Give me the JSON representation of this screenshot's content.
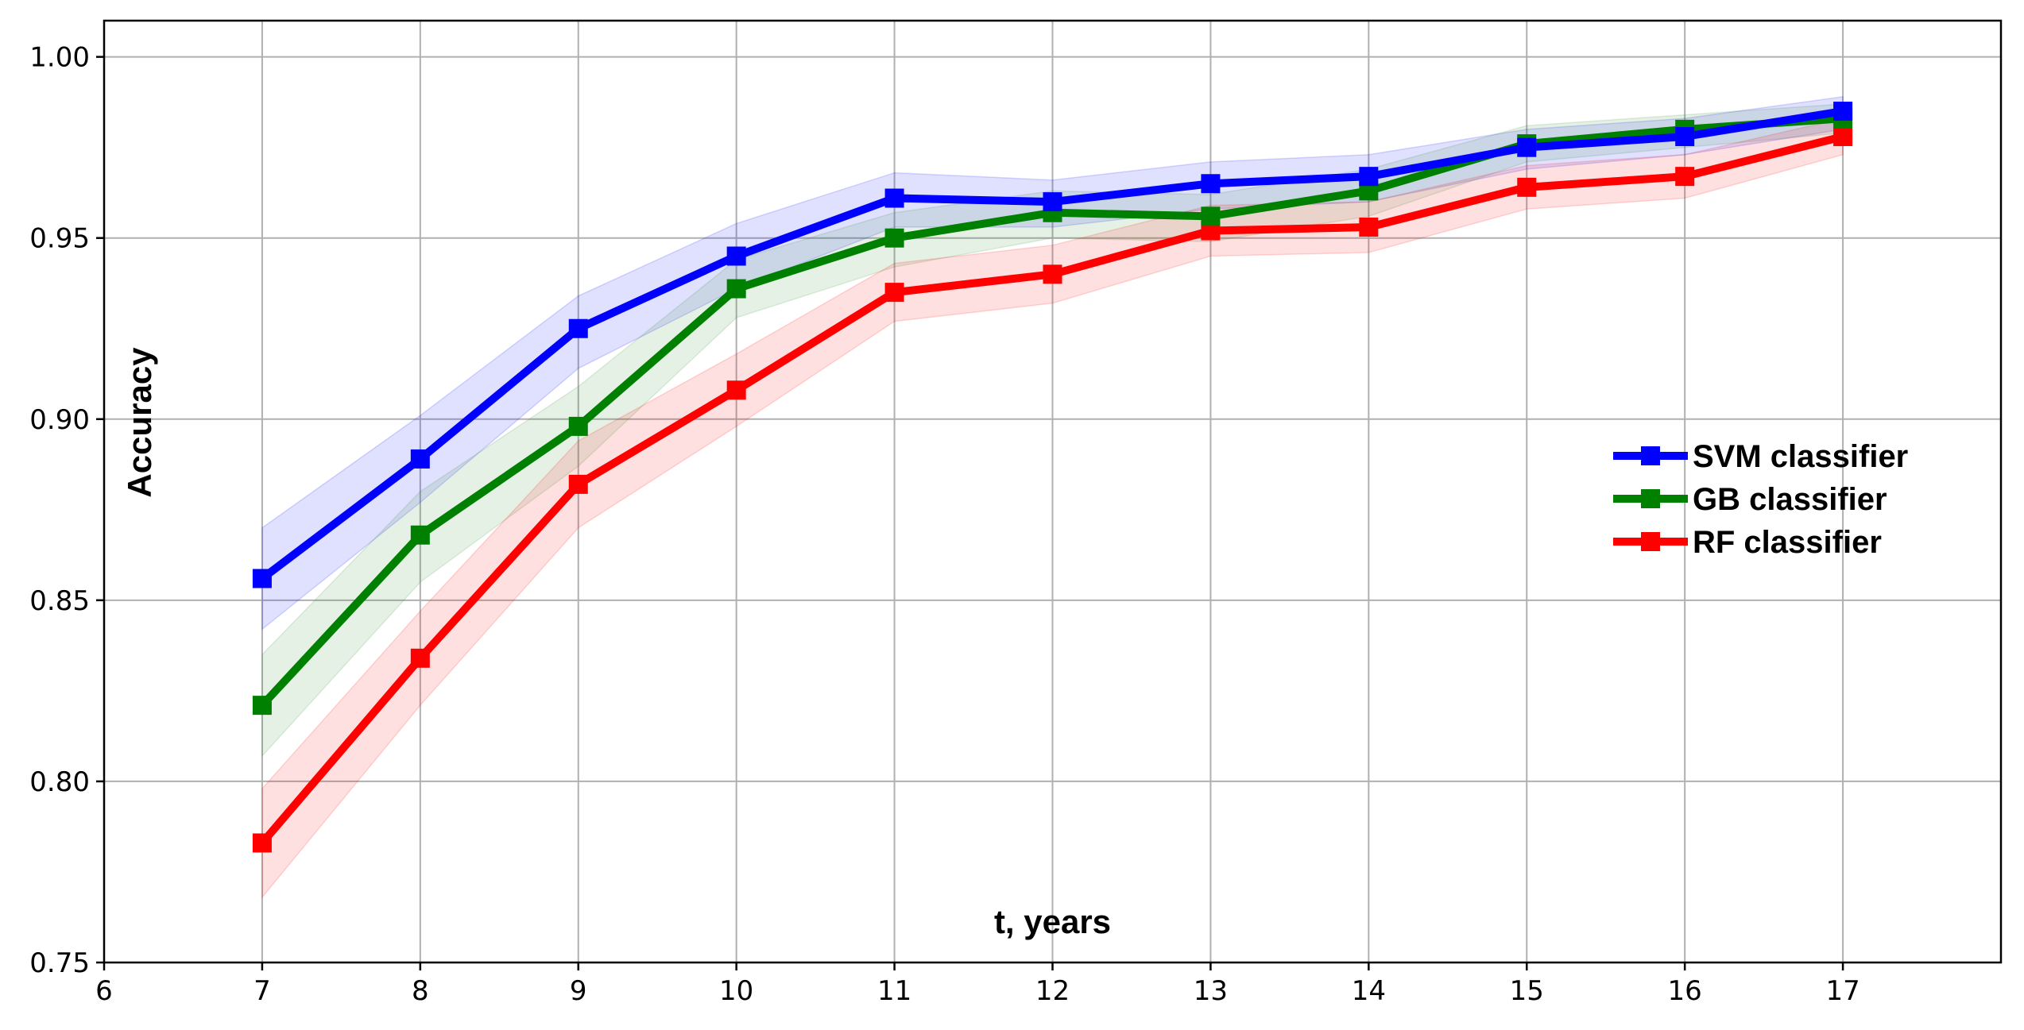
{
  "chart_data": {
    "type": "line",
    "title": "",
    "xlabel": "t, years",
    "ylabel": "Accuracy",
    "xlim": [
      6,
      18
    ],
    "ylim": [
      0.75,
      1.01
    ],
    "x_ticks": [
      6,
      7,
      8,
      9,
      10,
      11,
      12,
      13,
      14,
      15,
      16,
      17
    ],
    "y_ticks": [
      0.75,
      0.8,
      0.85,
      0.9,
      0.95,
      1.0
    ],
    "y_tick_labels": [
      "0.75",
      "0.80",
      "0.85",
      "0.90",
      "0.95",
      "1.00"
    ],
    "grid": true,
    "legend_position": "center-right",
    "x": [
      7,
      8,
      9,
      10,
      11,
      12,
      13,
      14,
      15,
      16,
      17
    ],
    "series": [
      {
        "name": "SVM classifier",
        "color": "#0000ff",
        "band_color": "#0000ff",
        "values": [
          0.856,
          0.889,
          0.925,
          0.945,
          0.961,
          0.96,
          0.965,
          0.967,
          0.975,
          0.978,
          0.985
        ],
        "lower": [
          0.842,
          0.877,
          0.914,
          0.936,
          0.953,
          0.953,
          0.958,
          0.96,
          0.969,
          0.973,
          0.98
        ],
        "upper": [
          0.87,
          0.901,
          0.934,
          0.954,
          0.968,
          0.966,
          0.971,
          0.973,
          0.98,
          0.983,
          0.989
        ]
      },
      {
        "name": "GB classifier",
        "color": "#008000",
        "band_color": "#2e8b2e",
        "values": [
          0.821,
          0.868,
          0.898,
          0.936,
          0.95,
          0.957,
          0.956,
          0.963,
          0.976,
          0.98,
          0.983
        ],
        "lower": [
          0.807,
          0.855,
          0.887,
          0.928,
          0.942,
          0.95,
          0.949,
          0.956,
          0.971,
          0.975,
          0.979
        ],
        "upper": [
          0.835,
          0.88,
          0.909,
          0.944,
          0.957,
          0.963,
          0.962,
          0.969,
          0.981,
          0.984,
          0.987
        ]
      },
      {
        "name": "RF classifier",
        "color": "#ff0000",
        "band_color": "#ff0000",
        "values": [
          0.783,
          0.834,
          0.882,
          0.908,
          0.935,
          0.94,
          0.952,
          0.953,
          0.964,
          0.967,
          0.978
        ],
        "lower": [
          0.768,
          0.821,
          0.87,
          0.898,
          0.927,
          0.932,
          0.945,
          0.946,
          0.958,
          0.961,
          0.973
        ],
        "upper": [
          0.798,
          0.847,
          0.894,
          0.918,
          0.943,
          0.948,
          0.959,
          0.96,
          0.97,
          0.973,
          0.983
        ]
      }
    ]
  }
}
